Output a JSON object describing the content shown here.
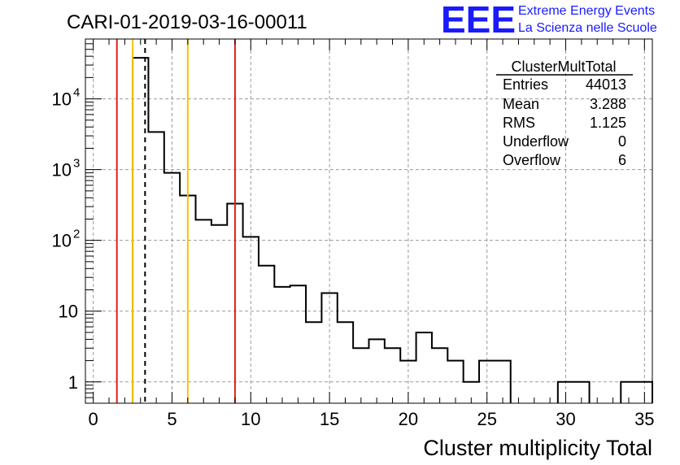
{
  "chart_data": {
    "type": "bar",
    "title": "CARI-01-2019-03-16-00011",
    "xlabel": "Cluster multiplicity Total",
    "ylabel": "",
    "x_scale": "linear",
    "y_scale": "log",
    "xlim": [
      -0.5,
      35.5
    ],
    "ylim": [
      0.5,
      70000
    ],
    "grid": true,
    "x_ticks": [
      0,
      5,
      10,
      15,
      20,
      25,
      30,
      35
    ],
    "y_ticks": [
      {
        "value": 1,
        "label": "1"
      },
      {
        "value": 10,
        "label": "10"
      },
      {
        "value": 100,
        "label": "10",
        "exp": "2"
      },
      {
        "value": 1000,
        "label": "10",
        "exp": "3"
      },
      {
        "value": 10000,
        "label": "10",
        "exp": "4"
      }
    ],
    "bin_width": 1,
    "bins": [
      {
        "low": 2.5,
        "value": 38000
      },
      {
        "low": 3.5,
        "value": 3400
      },
      {
        "low": 4.5,
        "value": 900
      },
      {
        "low": 5.5,
        "value": 430
      },
      {
        "low": 6.5,
        "value": 195
      },
      {
        "low": 7.5,
        "value": 165
      },
      {
        "low": 8.5,
        "value": 330
      },
      {
        "low": 9.5,
        "value": 112
      },
      {
        "low": 10.5,
        "value": 44
      },
      {
        "low": 11.5,
        "value": 22
      },
      {
        "low": 12.5,
        "value": 23
      },
      {
        "low": 13.5,
        "value": 7
      },
      {
        "low": 14.5,
        "value": 18
      },
      {
        "low": 15.5,
        "value": 7
      },
      {
        "low": 16.5,
        "value": 3
      },
      {
        "low": 17.5,
        "value": 4
      },
      {
        "low": 18.5,
        "value": 3
      },
      {
        "low": 19.5,
        "value": 2
      },
      {
        "low": 20.5,
        "value": 5
      },
      {
        "low": 21.5,
        "value": 3
      },
      {
        "low": 22.5,
        "value": 2
      },
      {
        "low": 23.5,
        "value": 1
      },
      {
        "low": 24.5,
        "value": 2
      },
      {
        "low": 25.5,
        "value": 2
      },
      {
        "low": 29.5,
        "value": 1
      },
      {
        "low": 30.5,
        "value": 1
      },
      {
        "low": 33.5,
        "value": 1
      },
      {
        "low": 34.5,
        "value": 1
      }
    ],
    "vertical_lines": [
      {
        "x": 1.5,
        "color": "#e0201b",
        "style": "solid"
      },
      {
        "x": 2.5,
        "color": "#f2c400",
        "style": "solid"
      },
      {
        "x": 3.288,
        "color": "#000000",
        "style": "dashed"
      },
      {
        "x": 6.0,
        "color": "#f2c400",
        "style": "solid"
      },
      {
        "x": 9.0,
        "color": "#e0201b",
        "style": "solid"
      }
    ],
    "stats": {
      "name": "ClusterMultTotal",
      "rows": [
        {
          "label": "Entries",
          "value": "44013"
        },
        {
          "label": "Mean",
          "value": "3.288"
        },
        {
          "label": "RMS",
          "value": "1.125"
        },
        {
          "label": "Underflow",
          "value": "0"
        },
        {
          "label": "Overflow",
          "value": "6"
        }
      ]
    }
  },
  "logo": {
    "letters": "EEE",
    "line1": "Extreme Energy Events",
    "line2": "La Scienza nelle Scuole"
  }
}
